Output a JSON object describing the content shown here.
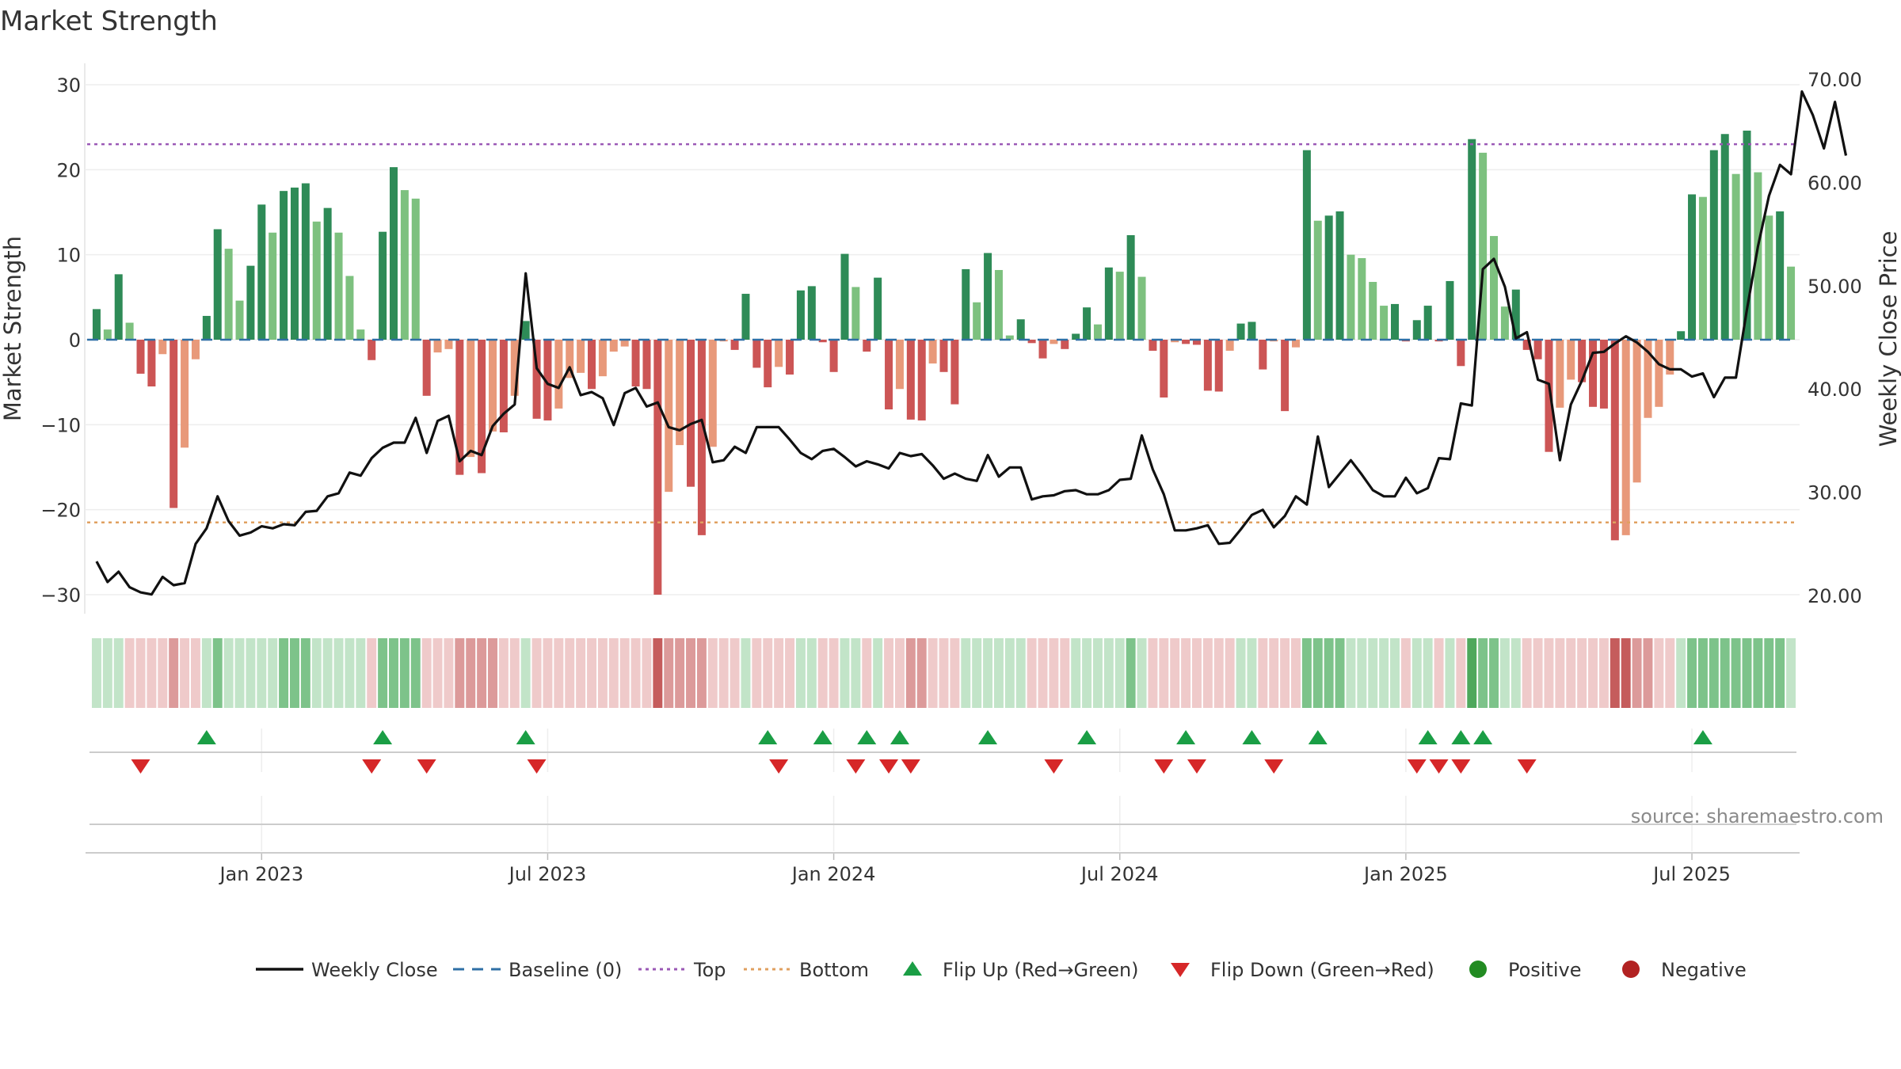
{
  "chart_data": {
    "type": "bar",
    "title": "Market Strength",
    "ylabel": "Market Strength",
    "y2label": "Weekly Close Price",
    "ylim": [
      -30,
      30
    ],
    "y2lim": [
      20,
      70
    ],
    "yticks": [
      "30",
      "20",
      "10",
      "0",
      "−10",
      "−20",
      "−30"
    ],
    "y2ticks": [
      "70.00",
      "60.00",
      "50.00",
      "40.00",
      "30.00",
      "20.00"
    ],
    "xticks": [
      {
        "label": "Jan 2023",
        "week": 15
      },
      {
        "label": "Jul 2023",
        "week": 41
      },
      {
        "label": "Jan 2024",
        "week": 67
      },
      {
        "label": "Jul 2024",
        "week": 93
      },
      {
        "label": "Jan 2025",
        "week": 119
      },
      {
        "label": "Jul 2025",
        "week": 145
      }
    ],
    "top_line": 23,
    "bottom_line": -21.5,
    "baseline": 0,
    "strength": [
      3.6,
      1.2,
      7.7,
      2,
      -4,
      -5.5,
      -1.7,
      -19.8,
      -12.7,
      -2.3,
      2.8,
      13,
      10.7,
      4.6,
      8.7,
      15.9,
      12.6,
      17.5,
      17.9,
      18.4,
      13.9,
      15.5,
      12.6,
      7.5,
      1.2,
      -2.4,
      12.7,
      20.3,
      17.6,
      16.6,
      -6.6,
      -1.5,
      -1.1,
      -15.9,
      -13.8,
      -15.7,
      -10.8,
      -10.9,
      -6.6,
      2.2,
      -9.3,
      -9.5,
      -8.1,
      -4.5,
      -3.9,
      -5.8,
      -4.3,
      -1.4,
      -0.8,
      -5.5,
      -5.8,
      -30,
      -17.9,
      -12.4,
      -17.3,
      -23,
      -12.6,
      -0.2,
      -1.2,
      5.4,
      -3.3,
      -5.6,
      -3.2,
      -4.1,
      5.8,
      6.3,
      -0.3,
      -3.8,
      10.1,
      6.2,
      -1.4,
      7.3,
      -8.2,
      -5.8,
      -9.4,
      -9.5,
      -2.8,
      -3.8,
      -7.6,
      8.3,
      4.4,
      10.2,
      8.2,
      0.5,
      2.4,
      -0.4,
      -2.2,
      -0.5,
      -1.1,
      0.7,
      3.8,
      1.8,
      8.5,
      8,
      12.3,
      7.4,
      -1.3,
      -6.8,
      -0.3,
      -0.5,
      -0.6,
      -6,
      -6.1,
      -1.3,
      1.9,
      2.1,
      -3.5,
      -0.2,
      -8.4,
      -0.9,
      22.3,
      14,
      14.6,
      15.1,
      10,
      9.6,
      6.8,
      4,
      4.2,
      -0.2,
      2.3,
      4,
      -0.2,
      6.9,
      -3.1,
      23.6,
      22,
      12.2,
      3.9,
      5.9,
      -1.2,
      -2.3,
      -13.2,
      -8,
      -4.7,
      -5,
      -7.9,
      -8.1,
      -23.6,
      -23,
      -16.8,
      -9.2,
      -7.9,
      -4.1,
      1,
      17.1,
      16.8,
      22.3,
      24.2,
      19.5,
      24.6,
      19.7,
      14.6,
      15.1,
      8.6
    ],
    "close": [
      23.3,
      21.3,
      22.3,
      20.8,
      20.3,
      20.1,
      21.8,
      21,
      21.2,
      25,
      26.5,
      29.6,
      27.2,
      25.8,
      26.1,
      26.7,
      26.5,
      26.9,
      26.8,
      28.1,
      28.2,
      29.6,
      29.9,
      31.9,
      31.6,
      33.3,
      34.3,
      34.8,
      34.8,
      37.2,
      33.8,
      36.9,
      37.4,
      33,
      34,
      33.6,
      36.4,
      37.6,
      38.5,
      51.2,
      42,
      40.5,
      40.1,
      42.1,
      39.4,
      39.7,
      39.1,
      36.5,
      39.6,
      40.1,
      38.3,
      38.7,
      36.3,
      36,
      36.6,
      37,
      32.9,
      33.1,
      34.4,
      33.8,
      36.3,
      36.3,
      36.3,
      35.1,
      33.8,
      33.2,
      34,
      34.2,
      33.4,
      32.5,
      33,
      32.7,
      32.3,
      33.8,
      33.5,
      33.7,
      32.6,
      31.3,
      31.8,
      31.3,
      31.1,
      33.6,
      31.5,
      32.4,
      32.4,
      29.3,
      29.6,
      29.7,
      30.1,
      30.2,
      29.8,
      29.8,
      30.2,
      31.2,
      31.3,
      35.5,
      32.2,
      29.8,
      26.3,
      26.3,
      26.5,
      26.8,
      25,
      25.1,
      26.4,
      27.8,
      28.3,
      26.6,
      27.7,
      29.6,
      28.8,
      35.4,
      30.5,
      31.8,
      33.1,
      31.7,
      30.2,
      29.6,
      29.6,
      31.4,
      29.9,
      30.4,
      33.3,
      33.2,
      38.6,
      38.4,
      51.6,
      52.6,
      49.9,
      44.9,
      45.5,
      40.9,
      40.5,
      33.1,
      38.5,
      40.8,
      43.5,
      43.6,
      44.4,
      45.1,
      44.5,
      43.6,
      42.4,
      41.9,
      41.9,
      41.2,
      41.5,
      39.2,
      41.1,
      41.1,
      47.7,
      53.8,
      58.7,
      61.7,
      60.8,
      68.8,
      66.5,
      63.3,
      67.8,
      62.6
    ],
    "shading_levels": [
      1,
      1,
      1,
      -1,
      -1,
      -1,
      -1,
      -2,
      -1,
      -1,
      1,
      2,
      1,
      1,
      1,
      1,
      1,
      2,
      2,
      2,
      1,
      1,
      1,
      1,
      1,
      -1,
      2,
      2,
      2,
      2,
      -1,
      -1,
      -1,
      -2,
      -2,
      -2,
      -2,
      -1,
      -1,
      1,
      -1,
      -1,
      -1,
      -1,
      -1,
      -1,
      -1,
      -1,
      -1,
      -1,
      -1,
      -3,
      -2,
      -2,
      -2,
      -2,
      -1,
      -1,
      -1,
      1,
      -1,
      -1,
      -1,
      -1,
      1,
      1,
      -1,
      -1,
      1,
      1,
      -1,
      1,
      -1,
      -1,
      -2,
      -2,
      -1,
      -1,
      -1,
      1,
      1,
      1,
      1,
      1,
      1,
      -1,
      -1,
      -1,
      -1,
      1,
      1,
      1,
      1,
      1,
      2,
      1,
      -1,
      -1,
      -1,
      -1,
      -1,
      -1,
      -1,
      -1,
      1,
      1,
      -1,
      -1,
      -1,
      -1,
      2,
      2,
      2,
      2,
      1,
      1,
      1,
      1,
      1,
      -1,
      1,
      1,
      -1,
      1,
      -1,
      3,
      2,
      2,
      1,
      1,
      -1,
      -1,
      -1,
      -1,
      -1,
      -1,
      -1,
      -1,
      -3,
      -3,
      -2,
      -2,
      -1,
      -1,
      1,
      2,
      2,
      2,
      2,
      2,
      2,
      2,
      2,
      2,
      1
    ],
    "flip_up_weeks": [
      10,
      26,
      39,
      61,
      66,
      70,
      73,
      81,
      90,
      99,
      105,
      111,
      121,
      124,
      126,
      146
    ],
    "flip_down_weeks": [
      4,
      25,
      30,
      40,
      62,
      69,
      72,
      74,
      87,
      97,
      100,
      107,
      120,
      122,
      124,
      130
    ],
    "colors": {
      "strong_green": "#2e8b57",
      "light_green": "#7dc17f",
      "strong_red": "#cc5555",
      "light_red": "#e8997a",
      "close_line": "#111111",
      "baseline": "#2f6fa6",
      "top": "#9b59b6",
      "bottom": "#e0a060",
      "flip_up": "#1a9e45",
      "flip_down": "#d62728",
      "positive": "#228b22",
      "negative": "#b22222"
    },
    "legend": [
      {
        "label": "Weekly Close",
        "kind": "solid-line",
        "color": "#111111"
      },
      {
        "label": "Baseline (0)",
        "kind": "dash-line",
        "color": "#2f6fa6"
      },
      {
        "label": "Top",
        "kind": "dot-line",
        "color": "#9b59b6"
      },
      {
        "label": "Bottom",
        "kind": "dot-line",
        "color": "#e0a060"
      },
      {
        "label": "Flip Up (Red→Green)",
        "kind": "triangle-up",
        "color": "#1a9e45"
      },
      {
        "label": "Flip Down (Green→Red)",
        "kind": "triangle-down",
        "color": "#d62728"
      },
      {
        "label": "Positive",
        "kind": "circle",
        "color": "#228b22"
      },
      {
        "label": "Negative",
        "kind": "circle",
        "color": "#b22222"
      }
    ],
    "legend_position": "bottom",
    "grid": true,
    "source_text": "source: sharemaestro.com"
  }
}
